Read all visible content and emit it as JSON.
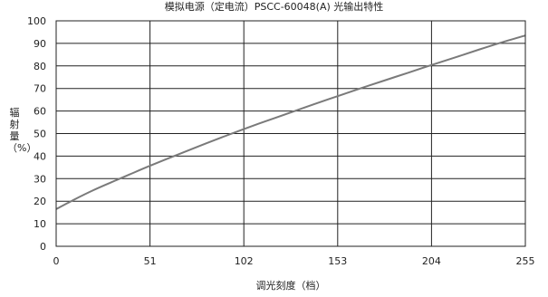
{
  "chart_data": {
    "type": "line",
    "title": "模拟电源（定电流）PSCC-60048(A) 光输出特性",
    "xlabel": "调光刻度（档）",
    "ylabel": "辐射量（%）",
    "xlim": [
      0,
      255
    ],
    "ylim": [
      0,
      100
    ],
    "xticks": [
      0,
      51,
      102,
      153,
      204,
      255
    ],
    "yticks": [
      0,
      10,
      20,
      30,
      40,
      50,
      60,
      70,
      80,
      90,
      100
    ],
    "grid": true,
    "series": [
      {
        "color": "#7a7a7a",
        "x": [
          0,
          10,
          20,
          30,
          40,
          51,
          64,
          77,
          90,
          102,
          115,
          128,
          140,
          153,
          166,
          179,
          191,
          204,
          217,
          230,
          242,
          255
        ],
        "y": [
          16.5,
          20.8,
          24.8,
          28.4,
          31.9,
          35.7,
          40.0,
          44.2,
          48.3,
          52.0,
          55.8,
          59.5,
          63.0,
          66.6,
          70.2,
          73.7,
          76.9,
          80.4,
          83.8,
          87.3,
          90.4,
          93.5
        ]
      }
    ]
  }
}
